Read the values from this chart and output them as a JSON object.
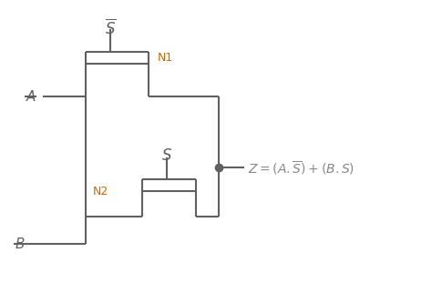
{
  "background_color": "#ffffff",
  "line_color": "#606060",
  "label_color_orange": "#cc6600",
  "equation_color": "#888888",
  "figsize": [
    4.74,
    3.11
  ],
  "dpi": 100
}
